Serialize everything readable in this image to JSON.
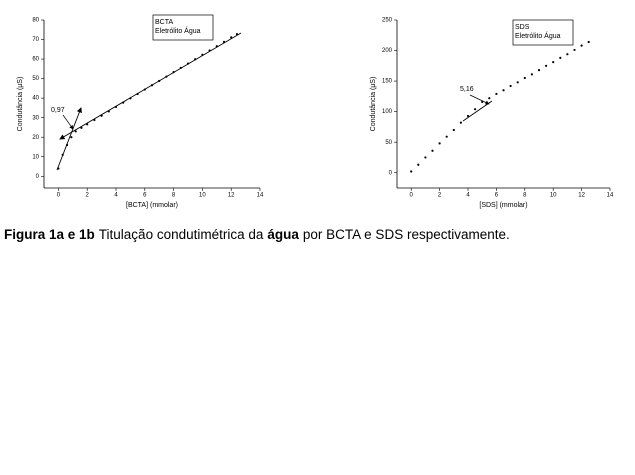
{
  "chart_data": [
    {
      "type": "scatter",
      "legend_lines": [
        "BCTA",
        "Eletrólito Água"
      ],
      "x_label": "[BCTA] (mmolar)",
      "y_label": "Condutância (µS)",
      "annotation": "0,97",
      "xlim": [
        -1,
        14
      ],
      "xticks": [
        0,
        2,
        4,
        6,
        8,
        10,
        12,
        14
      ],
      "ylim": [
        -6,
        80
      ],
      "yticks": [
        0,
        10,
        20,
        30,
        40,
        50,
        60,
        70,
        80
      ],
      "color": "#000000",
      "series": [
        {
          "x": [
            0,
            0.3,
            0.6,
            0.9,
            1.2,
            1.6,
            2.0,
            2.5,
            3.0,
            3.5,
            4.0,
            4.5,
            5.0,
            5.5,
            6.0,
            6.5,
            7.0,
            7.5,
            8.0,
            8.5,
            9.0,
            9.5,
            10.0,
            10.5,
            11.0,
            11.5,
            12.0,
            12.4
          ],
          "values": [
            4,
            11,
            16,
            20,
            23,
            24.8,
            26.6,
            28.8,
            31,
            33.2,
            35.5,
            37.7,
            39.9,
            42.1,
            44.4,
            46.6,
            48.8,
            51,
            53.3,
            55.5,
            57.7,
            59.9,
            62.2,
            64.4,
            66.6,
            68.8,
            71.1,
            72.8
          ]
        }
      ]
    },
    {
      "type": "scatter",
      "legend_lines": [
        "SDS",
        "Eletrólito Água"
      ],
      "x_label": "[SDS] (mmolar)",
      "y_label": "Condutância (µS)",
      "annotation": "5,16",
      "xlim": [
        -1,
        14
      ],
      "xticks": [
        0,
        2,
        4,
        6,
        8,
        10,
        12,
        14
      ],
      "ylim": [
        -25,
        250
      ],
      "yticks": [
        0,
        50,
        100,
        150,
        200,
        250
      ],
      "color": "#000000",
      "series": [
        {
          "x": [
            0,
            0.5,
            1,
            1.5,
            2,
            2.5,
            3,
            3.5,
            4,
            4.5,
            5,
            5.5,
            6,
            6.5,
            7,
            7.5,
            8,
            8.5,
            9,
            9.5,
            10,
            10.5,
            11,
            11.5,
            12,
            12.5
          ],
          "values": [
            2,
            13,
            25,
            36,
            48,
            59,
            70,
            82,
            93,
            104,
            116,
            122,
            129,
            135,
            142,
            148,
            155,
            161,
            168,
            175,
            181,
            188,
            194,
            201,
            208,
            214
          ]
        }
      ]
    }
  ],
  "caption": [
    {
      "text": "Figura 1a e 1b",
      "bold": true
    },
    {
      "text": "Titulação condutimétrica da",
      "bold": false
    },
    {
      "text": "água",
      "bold": true
    },
    {
      "text": "por BCTA e SDS respectivamente.",
      "bold": false
    }
  ]
}
